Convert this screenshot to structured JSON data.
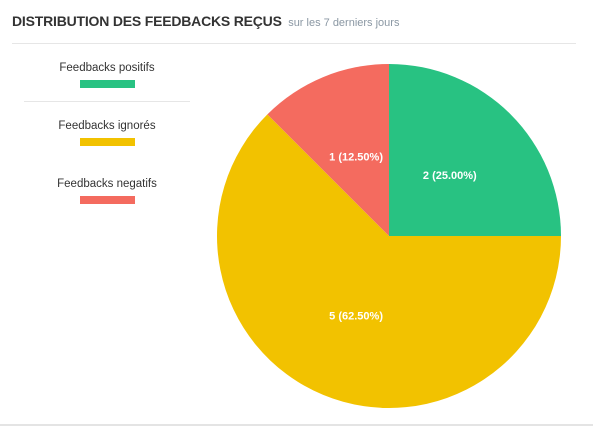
{
  "header": {
    "title": "DISTRIBUTION DES FEEDBACKS REÇUS",
    "subtitle": "sur les 7 derniers jours"
  },
  "legend": [
    {
      "label": "Feedbacks positifs",
      "color": "#28c282"
    },
    {
      "label": "Feedbacks ignorés",
      "color": "#f2c200"
    },
    {
      "label": "Feedbacks negatifs",
      "color": "#f46b5f"
    }
  ],
  "chart_data": {
    "type": "pie",
    "title": "DISTRIBUTION DES FEEDBACKS REÇUS",
    "subtitle": "sur les 7 derniers jours",
    "legend_position": "left",
    "slices": [
      {
        "label": "Feedbacks positifs",
        "value": 2,
        "percent": 25.0,
        "display": "2 (25.00%)",
        "color": "#28c282"
      },
      {
        "label": "Feedbacks ignorés",
        "value": 5,
        "percent": 62.5,
        "display": "5 (62.50%)",
        "color": "#f2c200"
      },
      {
        "label": "Feedbacks negatifs",
        "value": 1,
        "percent": 12.5,
        "display": "1 (12.50%)",
        "color": "#f46b5f"
      }
    ]
  }
}
